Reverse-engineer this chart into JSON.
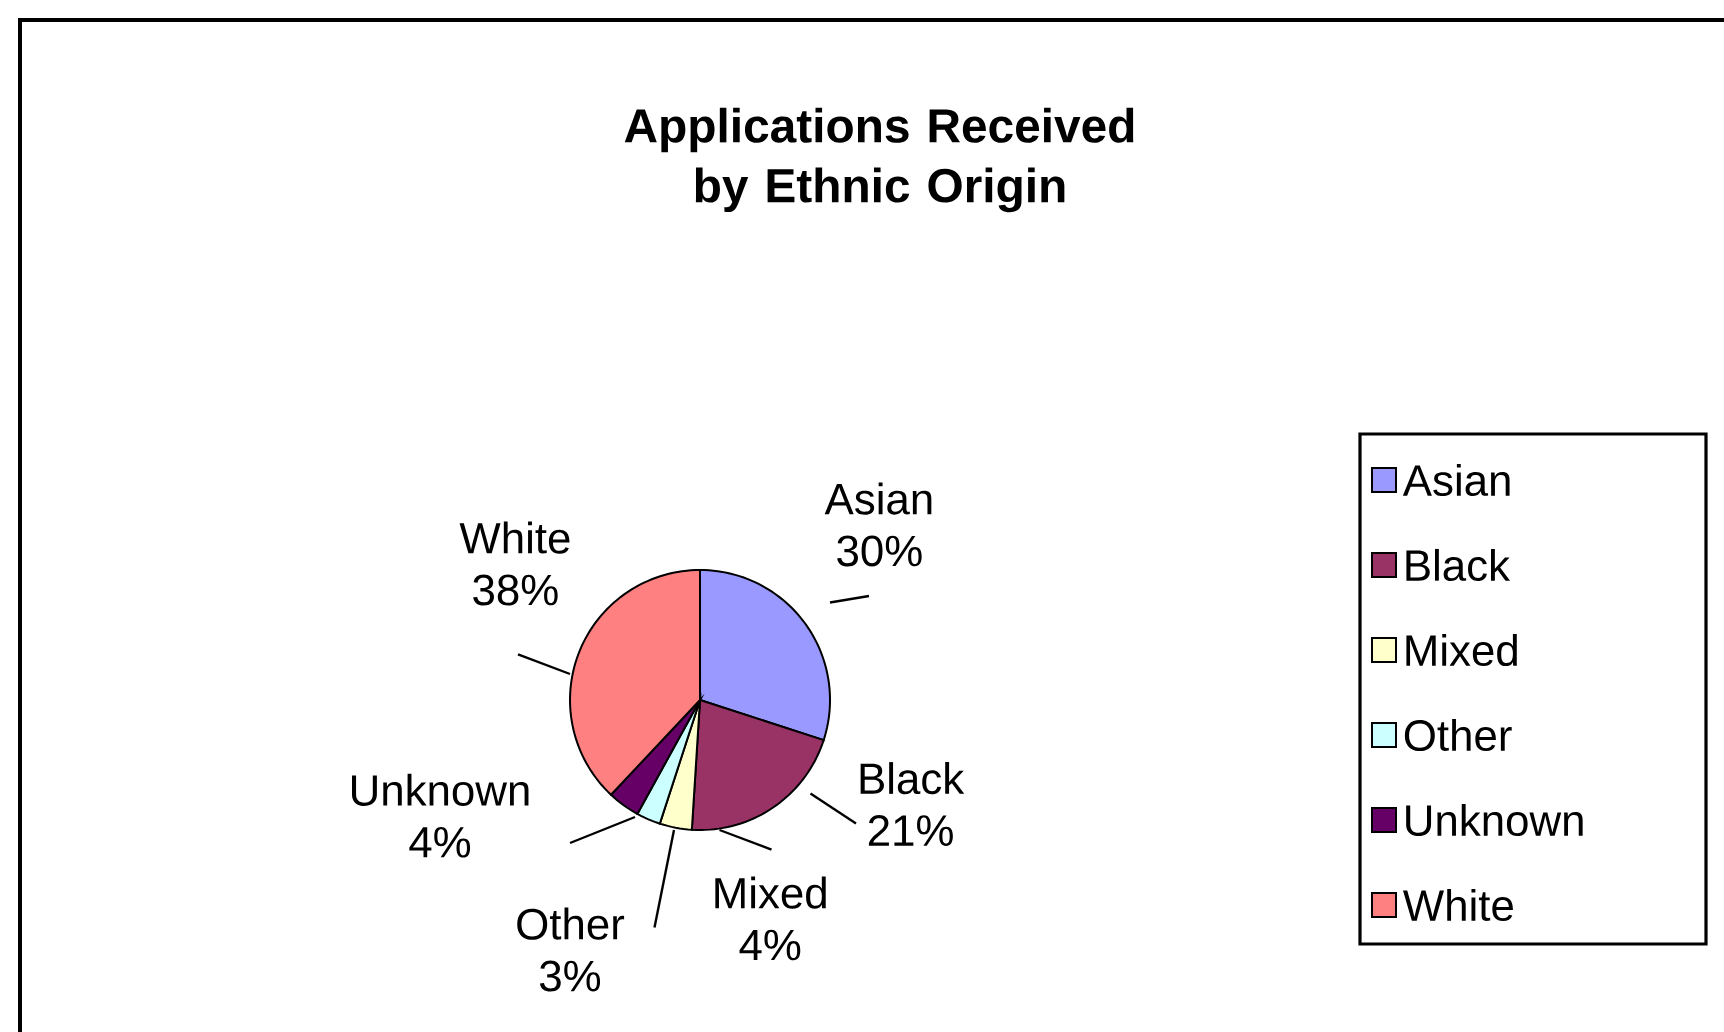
{
  "chart_data": {
    "type": "pie",
    "title": "Applications Received by Ethnic Origin",
    "categories": [
      "Asian",
      "Black",
      "Mixed",
      "Other",
      "Unknown",
      "White"
    ],
    "values": [
      30,
      21,
      4,
      3,
      4,
      38
    ],
    "value_labels": [
      "30%",
      "21%",
      "4%",
      "3%",
      "4%",
      "38%"
    ],
    "colors": [
      "#9999ff",
      "#993366",
      "#ffffcc",
      "#ccffff",
      "#660066",
      "#ff8080"
    ],
    "legend": "right"
  }
}
